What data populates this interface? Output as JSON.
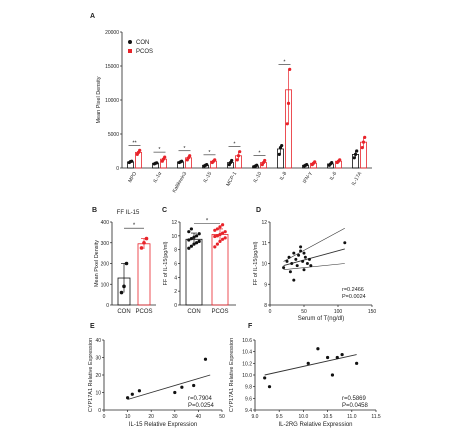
{
  "colors": {
    "con": "#111111",
    "pcos": "#e8232a",
    "axis": "#222222",
    "fit": "#333333"
  },
  "chart_data": [
    {
      "panel": "A",
      "type": "bar",
      "ylabel": "Mean Pixel Density",
      "ylim": [
        0,
        20000
      ],
      "yticks": [
        0,
        5000,
        10000,
        15000,
        20000
      ],
      "categories": [
        "MPO",
        "IL-1α",
        "Kallikrein3",
        "IL-15",
        "MCP-1",
        "IL-10",
        "IL-8",
        "IFN-γ",
        "IL-6",
        "IL-17A"
      ],
      "series": [
        {
          "name": "CON",
          "values": [
            900,
            700,
            900,
            400,
            800,
            300,
            2800,
            400,
            600,
            2000
          ],
          "points": [
            [
              800,
              950,
              1000
            ],
            [
              600,
              700,
              750
            ],
            [
              800,
              900,
              1000
            ],
            [
              300,
              400,
              500
            ],
            [
              500,
              800,
              1100
            ],
            [
              200,
              300,
              400
            ],
            [
              2000,
              3000,
              3300
            ],
            [
              300,
              400,
              500
            ],
            [
              400,
              600,
              800
            ],
            [
              1500,
              2000,
              2500
            ]
          ]
        },
        {
          "name": "PCOS",
          "values": [
            2300,
            1300,
            1500,
            1000,
            1800,
            800,
            11500,
            700,
            1000,
            3800
          ],
          "points": [
            [
              2000,
              2300,
              2600
            ],
            [
              1000,
              1300,
              1600
            ],
            [
              1200,
              1500,
              1800
            ],
            [
              800,
              1000,
              1200
            ],
            [
              1200,
              1800,
              2400
            ],
            [
              500,
              800,
              1100
            ],
            [
              6500,
              9500,
              14500
            ],
            [
              500,
              700,
              900
            ],
            [
              800,
              1000,
              1200
            ],
            [
              3000,
              3800,
              4500
            ]
          ]
        }
      ],
      "significance": [
        "**",
        "*",
        "*",
        "*",
        "*",
        "*",
        "*",
        "",
        "",
        ""
      ],
      "legend": "top-left"
    },
    {
      "panel": "B",
      "type": "bar",
      "title": "FF IL-15",
      "ylabel": "Mean Pixel Density",
      "ylim": [
        0,
        400
      ],
      "yticks": [
        0,
        100,
        200,
        300,
        400
      ],
      "categories": [
        "CON",
        "PCOS"
      ],
      "values": [
        130,
        295
      ],
      "points": [
        [
          60,
          90,
          200
        ],
        [
          275,
          300,
          320
        ]
      ],
      "errors": [
        70,
        25
      ],
      "significance": "*"
    },
    {
      "panel": "C",
      "type": "bar",
      "ylabel": "FF of IL-15(pg/ml)",
      "ylim": [
        0,
        12
      ],
      "yticks": [
        0,
        2,
        4,
        6,
        8,
        10,
        12
      ],
      "categories": [
        "CON",
        "PCOS"
      ],
      "values": [
        9.5,
        10.2
      ],
      "errors": [
        0.9,
        0.8
      ],
      "points": [
        [
          8.2,
          8.5,
          8.8,
          9.0,
          9.2,
          9.4,
          9.6,
          9.8,
          10.0,
          10.3,
          10.6,
          11.0
        ],
        [
          8.4,
          8.8,
          9.2,
          9.5,
          9.7,
          9.9,
          10.0,
          10.2,
          10.4,
          10.6,
          10.8,
          11.0,
          11.3,
          11.6
        ]
      ],
      "significance": "*"
    },
    {
      "panel": "D",
      "type": "scatter",
      "xlabel": "Serum of T(ng/dl)",
      "ylabel": "FF of IL-15(pg/ml)",
      "xlim": [
        0,
        150
      ],
      "ylim": [
        8,
        12
      ],
      "xticks": [
        0,
        50,
        100,
        150
      ],
      "yticks": [
        8,
        9,
        10,
        11,
        12
      ],
      "x": [
        20,
        25,
        28,
        30,
        32,
        35,
        38,
        40,
        42,
        45,
        48,
        50,
        52,
        55,
        58,
        60,
        35,
        45,
        50,
        110
      ],
      "y": [
        9.8,
        10.1,
        10.3,
        9.6,
        10.0,
        10.5,
        10.2,
        9.9,
        10.4,
        10.6,
        10.1,
        9.7,
        10.3,
        10.0,
        10.2,
        9.9,
        9.2,
        10.8,
        10.5,
        11.0
      ],
      "fit": [
        [
          20,
          9.9
        ],
        [
          110,
          10.7
        ]
      ],
      "band_upper": [
        [
          20,
          10.1
        ],
        [
          110,
          11.7
        ]
      ],
      "band_lower": [
        [
          20,
          9.7
        ],
        [
          110,
          10.0
        ]
      ],
      "annotation": [
        "r=0.2466",
        "P=0.0024"
      ]
    },
    {
      "panel": "E",
      "type": "scatter",
      "xlabel": "IL-15 Relative Expression",
      "ylabel": "CYP17A1 Relative Expression",
      "xlim": [
        0,
        50
      ],
      "ylim": [
        0,
        40
      ],
      "xticks": [
        0,
        10,
        20,
        30,
        40,
        50
      ],
      "yticks": [
        0,
        10,
        20,
        30,
        40
      ],
      "x": [
        10,
        12,
        15,
        30,
        33,
        38,
        43
      ],
      "y": [
        7,
        9,
        11,
        10,
        13,
        14,
        29
      ],
      "fit": [
        [
          10,
          6
        ],
        [
          45,
          20
        ]
      ],
      "annotation": [
        "r=0.7904",
        "P=0.0254"
      ]
    },
    {
      "panel": "F",
      "type": "scatter",
      "xlabel": "IL-2RG Relative Expression",
      "ylabel": "CYP17A1 Relative Expression",
      "xlim": [
        9.0,
        11.5
      ],
      "ylim": [
        9.4,
        10.6
      ],
      "xticks": [
        9.0,
        9.5,
        10.0,
        10.5,
        11.0,
        11.5
      ],
      "yticks": [
        9.4,
        9.6,
        9.8,
        10.0,
        10.2,
        10.4,
        10.6
      ],
      "x": [
        9.2,
        9.3,
        10.1,
        10.3,
        10.5,
        10.7,
        10.8,
        11.1,
        10.6
      ],
      "y": [
        9.95,
        9.8,
        10.2,
        10.45,
        10.3,
        10.3,
        10.35,
        10.2,
        10.0
      ],
      "fit": [
        [
          9.2,
          10.0
        ],
        [
          11.1,
          10.35
        ]
      ],
      "annotation": [
        "r=0.5869",
        "P=0.0458"
      ]
    }
  ]
}
